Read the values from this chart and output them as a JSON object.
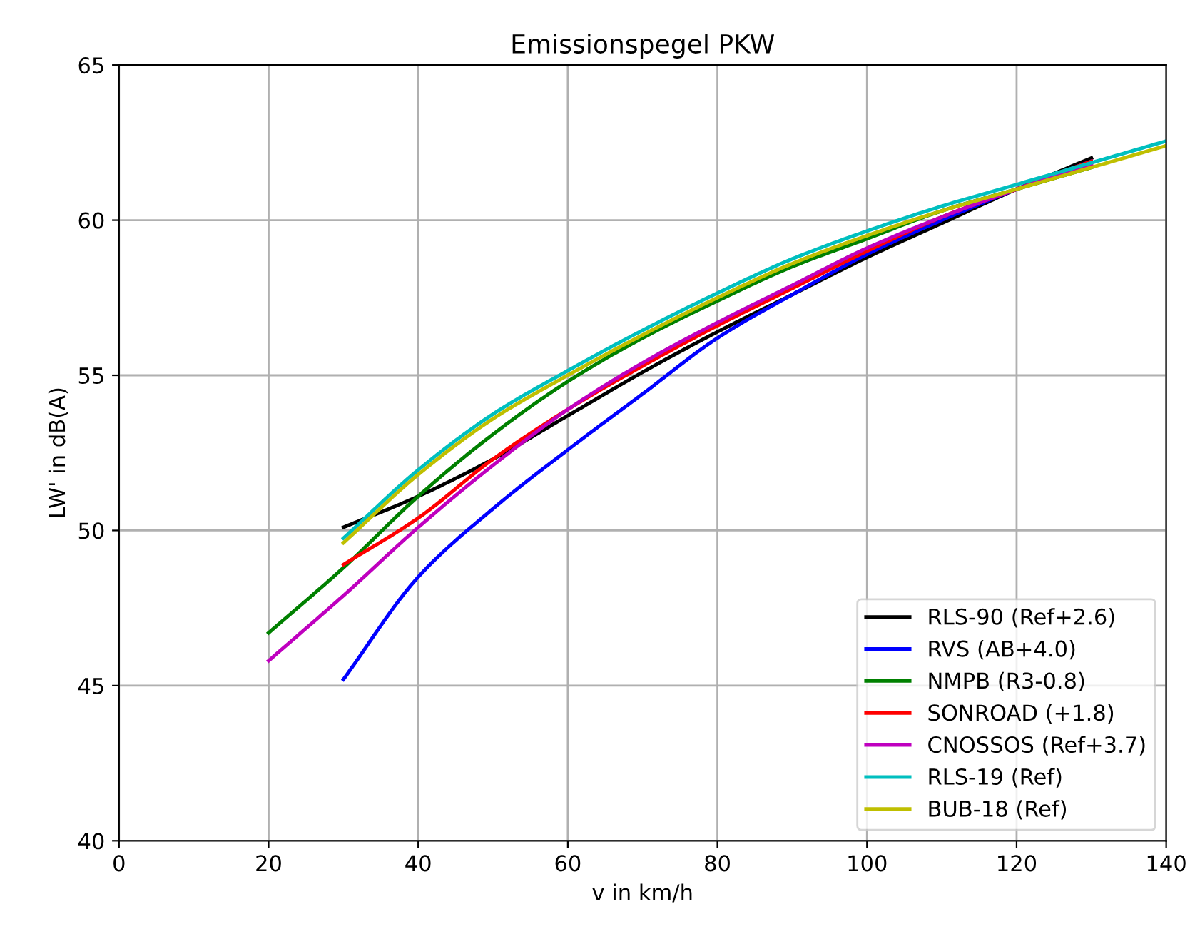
{
  "chart_data": {
    "type": "line",
    "title": "Emissionspegel PKW",
    "xlabel": "v in km/h",
    "ylabel": "LW' in dB(A)",
    "xlim": [
      0,
      140
    ],
    "ylim": [
      40,
      65
    ],
    "xticks": [
      0,
      20,
      40,
      60,
      80,
      100,
      120,
      140
    ],
    "yticks": [
      40,
      45,
      50,
      55,
      60,
      65
    ],
    "grid": true,
    "legend": "bottom right",
    "series": [
      {
        "name": "RLS-90 (Ref+2.6)",
        "color": "#000000",
        "x": [
          30,
          40,
          50,
          60,
          70,
          80,
          90,
          100,
          110,
          120,
          130
        ],
        "values": [
          50.1,
          51.1,
          52.3,
          53.7,
          55.1,
          56.4,
          57.6,
          58.8,
          59.9,
          61.0,
          62.0
        ]
      },
      {
        "name": "RVS (AB+4.0)",
        "color": "#0000ff",
        "x": [
          30,
          40,
          50,
          60,
          70,
          80,
          90,
          100,
          110,
          120,
          130
        ],
        "values": [
          45.2,
          48.5,
          50.7,
          52.6,
          54.4,
          56.2,
          57.6,
          58.9,
          60.0,
          61.0,
          61.9
        ]
      },
      {
        "name": "NMPB (R3-0.8)",
        "color": "#008000",
        "x": [
          20,
          30,
          40,
          50,
          60,
          70,
          80,
          90,
          100,
          110,
          120,
          130
        ],
        "values": [
          46.7,
          48.8,
          51.1,
          53.1,
          54.8,
          56.2,
          57.4,
          58.5,
          59.4,
          60.3,
          61.0,
          61.7
        ]
      },
      {
        "name": "SONROAD (+1.8)",
        "color": "#ff0000",
        "x": [
          30,
          40,
          50,
          60,
          70,
          80,
          90,
          100,
          110,
          120,
          130
        ],
        "values": [
          48.9,
          50.4,
          52.3,
          53.9,
          55.3,
          56.6,
          57.8,
          59.0,
          60.1,
          61.0,
          61.9
        ]
      },
      {
        "name": "CNOSSOS (Ref+3.7)",
        "color": "#bf00bf",
        "x": [
          20,
          30,
          40,
          50,
          60,
          70,
          80,
          90,
          100,
          110,
          120,
          130
        ],
        "values": [
          45.8,
          47.9,
          50.1,
          52.1,
          53.9,
          55.4,
          56.7,
          57.9,
          59.1,
          60.1,
          61.0,
          61.8
        ]
      },
      {
        "name": "RLS-19 (Ref)",
        "color": "#00bfbf",
        "x": [
          30,
          40,
          50,
          60,
          70,
          80,
          90,
          100,
          110,
          120,
          130,
          140
        ],
        "values": [
          49.75,
          51.95,
          53.75,
          55.15,
          56.45,
          57.65,
          58.75,
          59.65,
          60.45,
          61.15,
          61.85,
          62.55
        ]
      },
      {
        "name": "BUB-18 (Ref)",
        "color": "#bfbf00",
        "x": [
          30,
          40,
          50,
          60,
          70,
          80,
          90,
          100,
          110,
          120,
          130,
          140
        ],
        "values": [
          49.6,
          51.8,
          53.6,
          55.0,
          56.3,
          57.5,
          58.6,
          59.5,
          60.3,
          61.0,
          61.7,
          62.4
        ]
      }
    ]
  }
}
